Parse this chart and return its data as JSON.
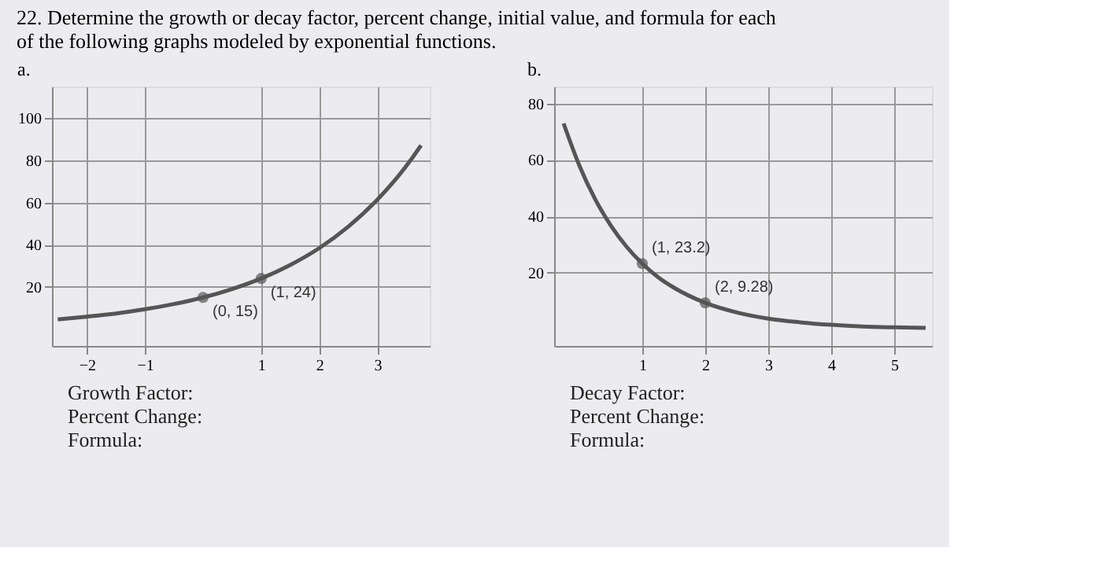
{
  "chart_data": [
    {
      "type": "line",
      "title": "22. Determine the growth or decay factor, percent change, initial value, and formula for each of the following graphs modeled by exponential functions.",
      "subtitle": "a.",
      "xlim": [
        -2.6,
        3.9
      ],
      "ylim": [
        -8,
        115
      ],
      "xticks": [
        -2,
        -1,
        1,
        2,
        3
      ],
      "yticks": [
        20,
        40,
        60,
        80,
        100
      ],
      "grid": true,
      "series": [
        {
          "type": "line",
          "color": "#555555",
          "marker": "none",
          "x": [
            -2.5,
            -2,
            -1.5,
            -1,
            -0.5,
            0,
            0.5,
            1,
            1.5,
            2,
            2.5,
            3,
            3.3,
            3.6,
            3.75
          ],
          "values": [
            4.6,
            5.9,
            7.4,
            9.4,
            11.9,
            15,
            19,
            24,
            30.4,
            38.4,
            48.6,
            61.4,
            70.6,
            81.2,
            87.1
          ]
        },
        {
          "type": "scatter",
          "color": "#555555",
          "marker": "circle",
          "x": [
            0,
            1
          ],
          "values": [
            15,
            24
          ]
        }
      ],
      "annotations": [
        {
          "text": "(0, 15)",
          "x": 0,
          "y": 15
        },
        {
          "text": "(1, 24)",
          "x": 1,
          "y": 24
        },
        "Growth Factor:",
        "Percent Change:",
        "Formula:"
      ]
    },
    {
      "type": "line",
      "title": "b.",
      "xlim": [
        -0.4,
        5.6
      ],
      "ylim": [
        -6,
        86
      ],
      "xticks": [
        1,
        2,
        3,
        4,
        5
      ],
      "yticks": [
        20,
        40,
        60,
        80
      ],
      "grid": true,
      "series": [
        {
          "type": "line",
          "color": "#555555",
          "marker": "none",
          "x": [
            -0.25,
            0,
            0.25,
            0.5,
            0.75,
            1,
            1.25,
            1.5,
            2,
            2.5,
            3,
            3.5,
            4,
            4.5,
            5,
            5.5
          ],
          "values": [
            72.9,
            58,
            46.1,
            36.7,
            29.2,
            23.2,
            18.4,
            14.7,
            9.3,
            5.9,
            3.7,
            2.4,
            1.5,
            0.9,
            0.6,
            0.4
          ]
        },
        {
          "type": "scatter",
          "color": "#555555",
          "marker": "circle",
          "x": [
            1,
            2
          ],
          "values": [
            23.2,
            9.28
          ]
        }
      ],
      "annotations": [
        {
          "text": "(1, 23.2)",
          "x": 1,
          "y": 23.2
        },
        {
          "text": "(2, 9.28)",
          "x": 2,
          "y": 9.28
        },
        "Decay Factor:",
        "Percent Change:",
        "Formula:"
      ]
    }
  ]
}
